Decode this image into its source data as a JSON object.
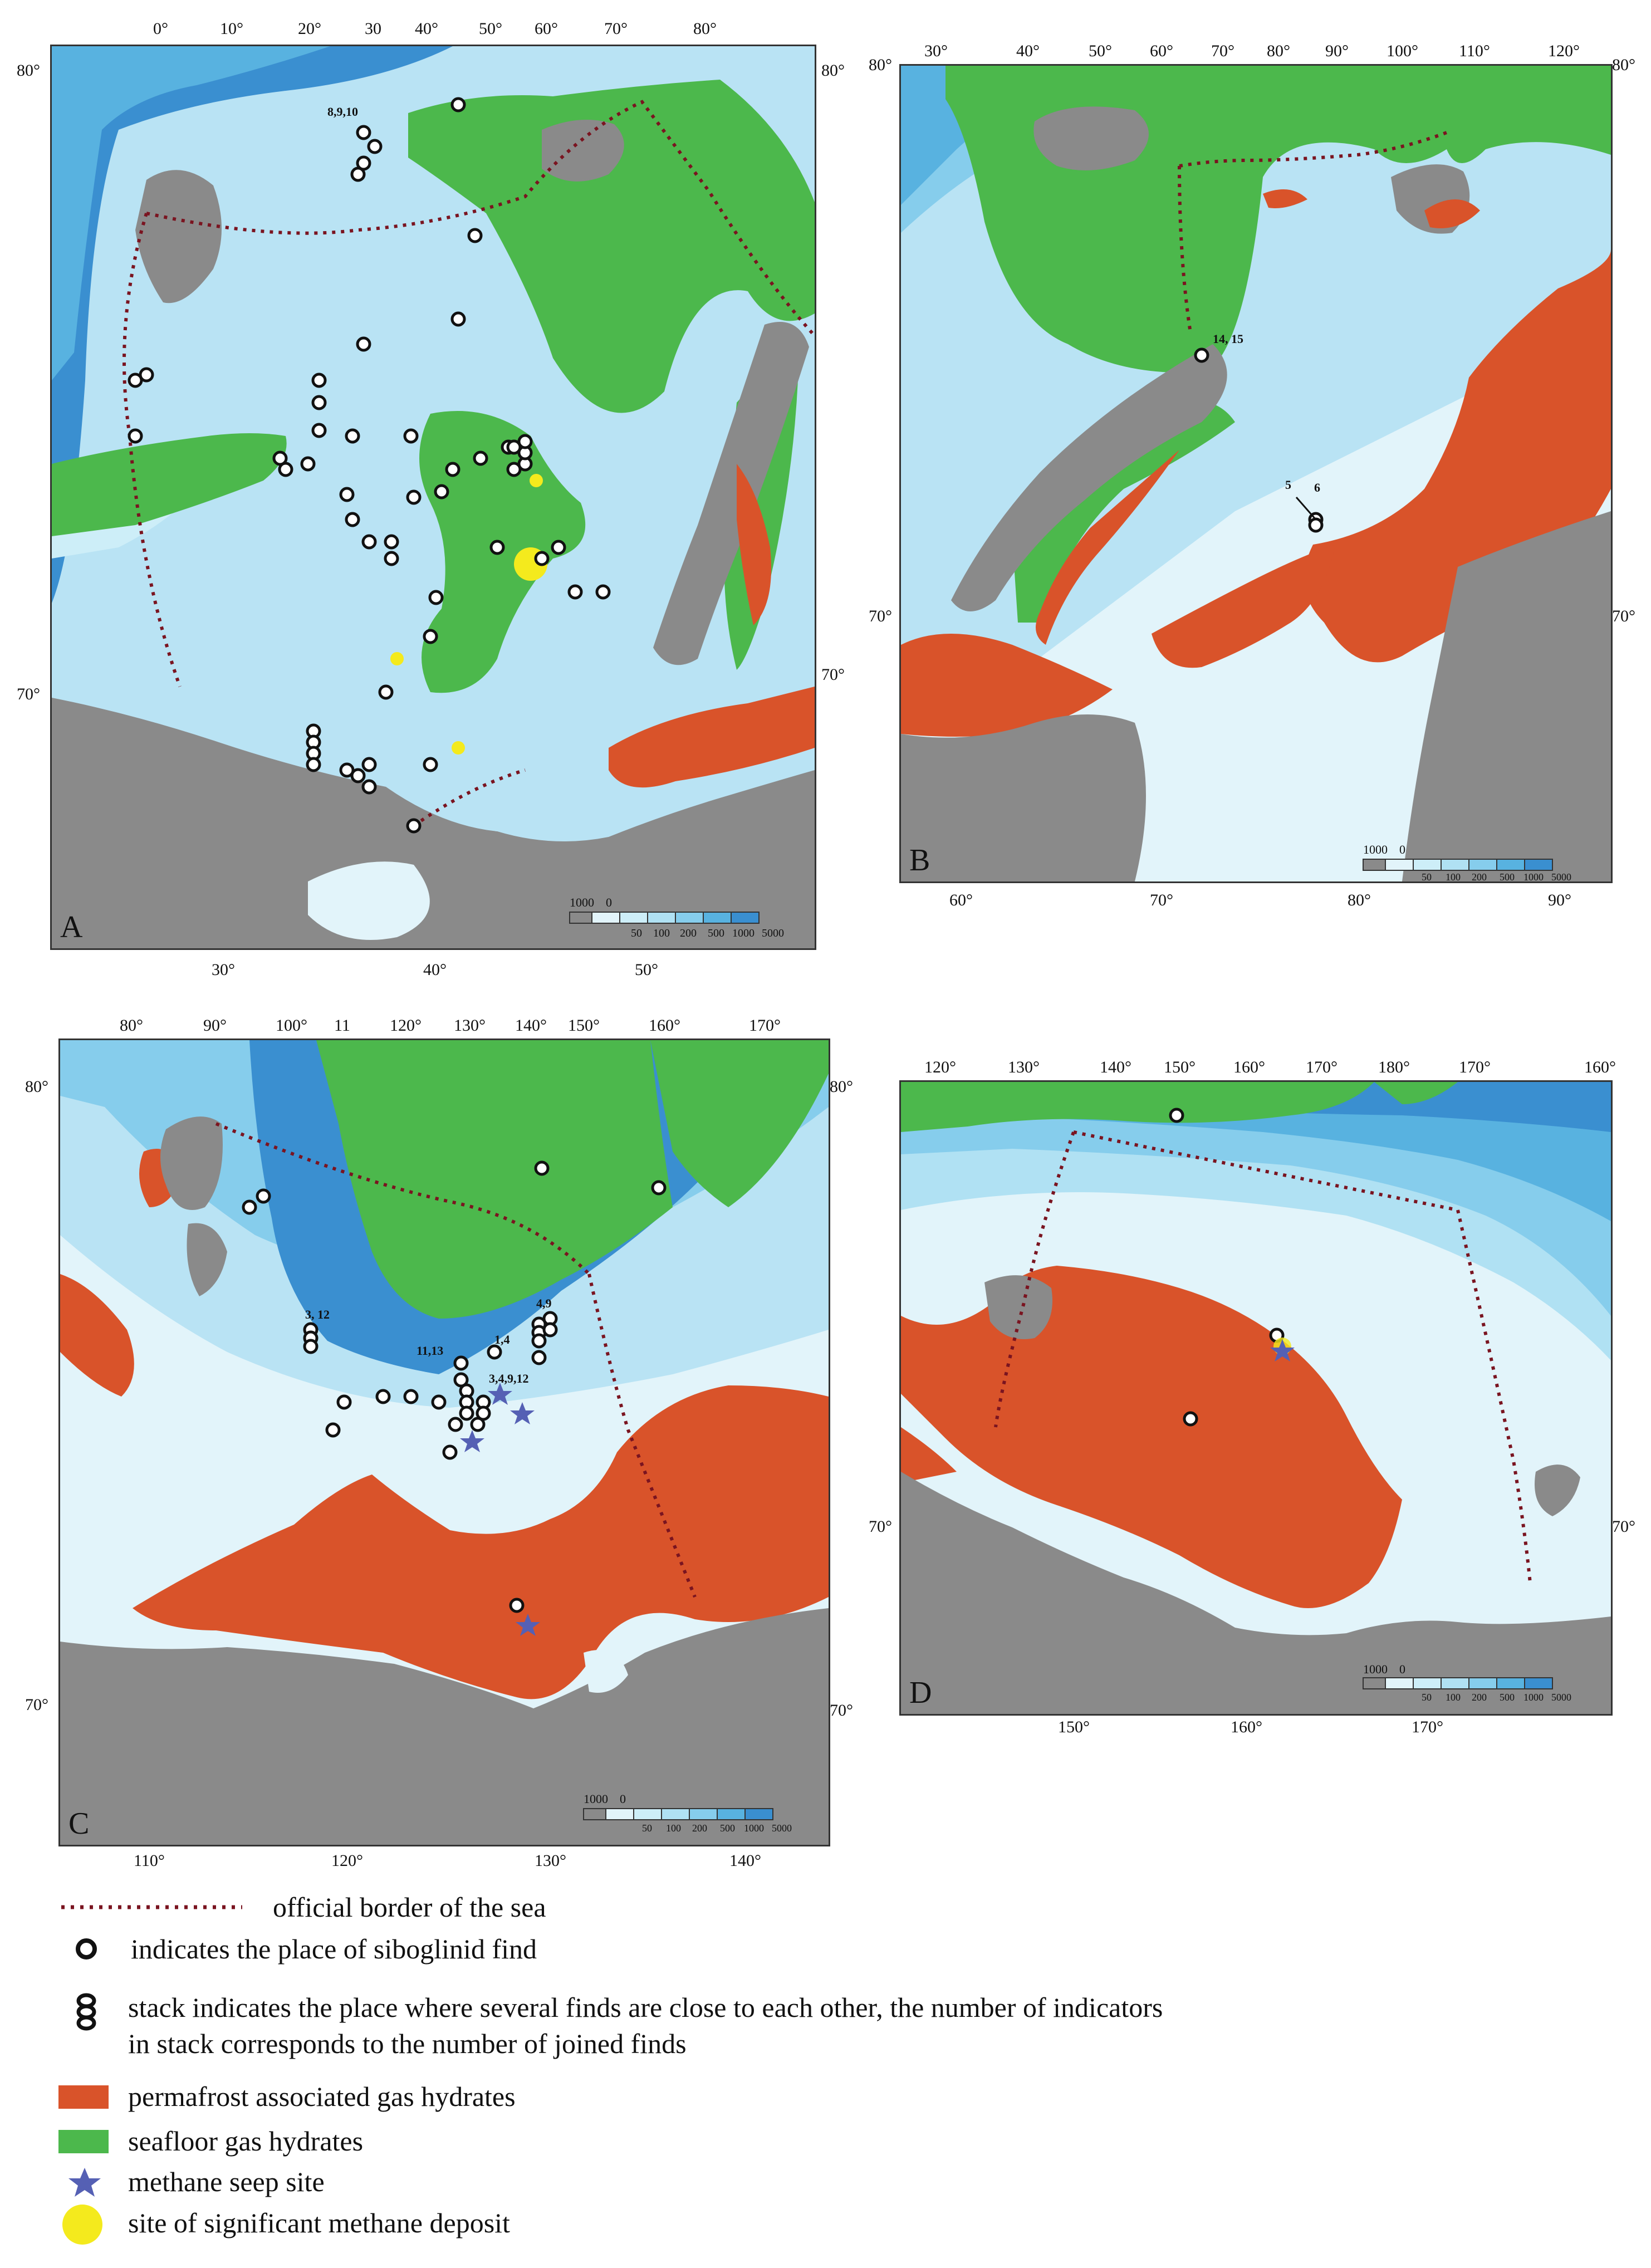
{
  "panels": [
    {
      "id": "A",
      "letter": "A",
      "lat_labels": [
        "80°",
        "80°",
        "70°",
        "70°"
      ],
      "lon_top": [
        "0°",
        "10°",
        "20°",
        "30",
        "40°",
        "50°",
        "60°",
        "70°",
        "80°"
      ],
      "lon_bottom": [
        "30°",
        "40°",
        "50°"
      ],
      "scale_labels": [
        "1000",
        "0",
        "50",
        "100",
        "200",
        "500",
        "1000",
        "5000"
      ],
      "site_labels": [
        "8,9,10"
      ]
    },
    {
      "id": "B",
      "letter": "B",
      "lat_labels": [
        "80°",
        "80°",
        "70°",
        "70°"
      ],
      "lon_top": [
        "30°",
        "40°",
        "50°",
        "60°",
        "70°",
        "80°",
        "90°",
        "100°",
        "110°",
        "120°"
      ],
      "lon_bottom": [
        "60°",
        "70°",
        "80°",
        "90°"
      ],
      "scale_labels": [
        "1000",
        "0",
        "50",
        "100",
        "200",
        "500",
        "1000",
        "5000"
      ],
      "site_labels": [
        "14, 15",
        "5",
        "6"
      ]
    },
    {
      "id": "C",
      "letter": "C",
      "lat_labels": [
        "80°",
        "80°",
        "70°",
        "70°"
      ],
      "lon_top": [
        "80°",
        "90°",
        "100°",
        "11",
        "120°",
        "130°",
        "140°",
        "150°",
        "160°",
        "170°"
      ],
      "lon_bottom": [
        "110°",
        "120°",
        "130°",
        "140°"
      ],
      "scale_labels": [
        "1000",
        "0",
        "50",
        "100",
        "200",
        "500",
        "1000",
        "5000"
      ],
      "site_labels": [
        "3, 12",
        "11,13",
        "1,4",
        "4,9",
        "3,4,9,12"
      ]
    },
    {
      "id": "D",
      "letter": "D",
      "lat_labels": [
        "70°",
        "70°"
      ],
      "lon_top": [
        "120°",
        "130°",
        "140°",
        "150°",
        "160°",
        "170°",
        "180°",
        "170°",
        "160°"
      ],
      "lon_bottom": [
        "150°",
        "160°",
        "170°"
      ],
      "scale_labels": [
        "1000",
        "0",
        "50",
        "100",
        "200",
        "500",
        "1000",
        "5000"
      ],
      "site_labels": []
    }
  ],
  "colors": {
    "land": "#8a8a8a",
    "shelf": "#e2f4fa",
    "depth_50": "#cdeef8",
    "depth_100": "#b0e1f3",
    "depth_200": "#86cdec",
    "depth_500": "#58b2e0",
    "depth_1000": "#3a8fd0",
    "seafloor_hydrates": "#4cb84c",
    "permafrost_hydrates": "#d9532a",
    "border": "#7a1420",
    "methane_deposit": "#f4ea1d",
    "seep_star": "#5560b4"
  },
  "legend": [
    {
      "symbol": "dotted-border",
      "text": "official border of the sea"
    },
    {
      "symbol": "ring",
      "text": "indicates the place of siboglinid find"
    },
    {
      "symbol": "stack",
      "text": "stack indicates the place where several finds are close to each other, the number of indicators",
      "text2": "in stack corresponds to the number of joined finds"
    },
    {
      "symbol": "red-swatch",
      "text": "permafrost associated  gas hydrates"
    },
    {
      "symbol": "green-swatch",
      "text": "seafloor  gas hydrates"
    },
    {
      "symbol": "star",
      "text": "methane seep site"
    },
    {
      "symbol": "yellow-dot",
      "text": "site of significant methane deposit"
    }
  ]
}
